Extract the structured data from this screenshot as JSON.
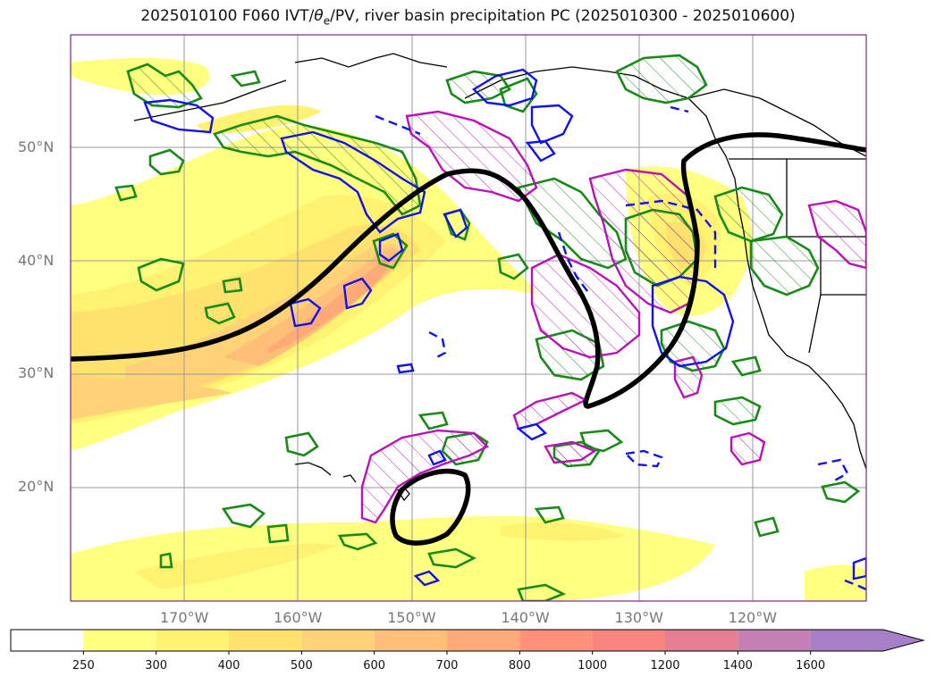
{
  "title": {
    "prefix": "2025010100 F060 IVT/",
    "theta": "θ",
    "sub": "e",
    "suffix": "/PV, river basin precipitation PC (2025010300 - 2025010600)"
  },
  "map": {
    "lat_labels": [
      {
        "text": "50°N",
        "value": 50
      },
      {
        "text": "40°N",
        "value": 40
      },
      {
        "text": "30°N",
        "value": 30
      },
      {
        "text": "20°N",
        "value": 20
      }
    ],
    "lon_labels": [
      {
        "text": "170°W",
        "value": -170
      },
      {
        "text": "160°W",
        "value": -160
      },
      {
        "text": "150°W",
        "value": -150
      },
      {
        "text": "140°W",
        "value": -140
      },
      {
        "text": "130°W",
        "value": -130
      },
      {
        "text": "120°W",
        "value": -120
      }
    ],
    "extent": {
      "lon": [
        -180,
        -110
      ],
      "lat": [
        10,
        60
      ]
    }
  },
  "colorbar": {
    "levels": [
      "250",
      "300",
      "400",
      "500",
      "600",
      "700",
      "800",
      "1000",
      "1200",
      "1400",
      "1600"
    ],
    "colors": [
      "#ffff80",
      "#fff270",
      "#ffe26e",
      "#ffd278",
      "#ffbf78",
      "#ffa878",
      "#ff9079",
      "#f8857f",
      "#e47f92",
      "#c47fb5",
      "#a77fc7"
    ]
  }
}
